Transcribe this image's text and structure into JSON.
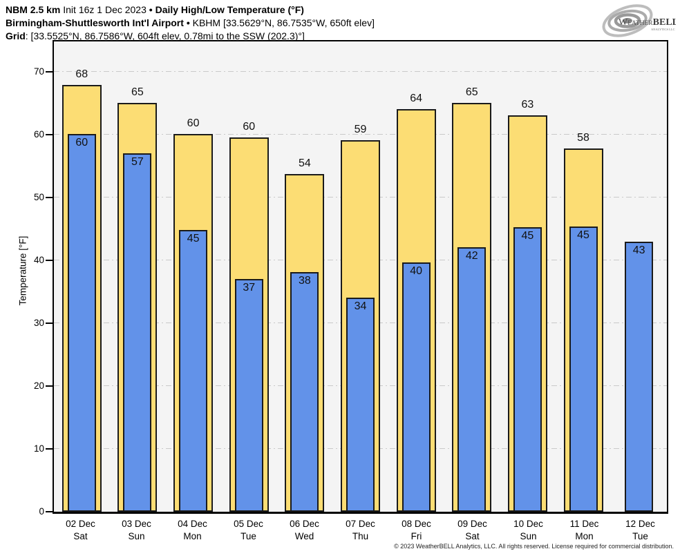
{
  "header": {
    "line1": {
      "model": "NBM 2.5 km",
      "init": "Init 16z 1 Dec 2023",
      "sep": "•",
      "title": "Daily High/Low Temperature (°F)"
    },
    "line2": {
      "station_name": "Birmingham-Shuttlesworth Int'l Airport",
      "sep": "•",
      "station_info": "KBHM [33.5629°N, 86.7535°W, 650ft elev]"
    },
    "line3": {
      "label": "Grid",
      "value": ": [33.5525°N, 86.7586°W, 604ft elev, 0.78mi to the SSW (202.3)°]"
    }
  },
  "logo": {
    "w": "W",
    "eather": "EATHER",
    "bell": "BELL",
    "sub": "ANALYTICS LLC"
  },
  "footer": {
    "copyright": "© 2023 WeatherBELL Analytics, LLC. All rights reserved. License required for commercial distribution."
  },
  "chart_data": {
    "type": "bar",
    "title": "Daily High/Low Temperature (°F)",
    "xlabel": "",
    "ylabel": "Temperature [°F]",
    "ylim": [
      0,
      74.8
    ],
    "yticks": [
      0,
      10,
      20,
      30,
      40,
      50,
      60,
      70
    ],
    "grid": true,
    "legend": false,
    "panel_color": "#f4f4f4",
    "gridline_color": "#c9c9c9",
    "categories": [
      {
        "date": "02 Dec",
        "day": "Sat"
      },
      {
        "date": "03 Dec",
        "day": "Sun"
      },
      {
        "date": "04 Dec",
        "day": "Mon"
      },
      {
        "date": "05 Dec",
        "day": "Tue"
      },
      {
        "date": "06 Dec",
        "day": "Wed"
      },
      {
        "date": "07 Dec",
        "day": "Thu"
      },
      {
        "date": "08 Dec",
        "day": "Fri"
      },
      {
        "date": "09 Dec",
        "day": "Sat"
      },
      {
        "date": "10 Dec",
        "day": "Sun"
      },
      {
        "date": "11 Dec",
        "day": "Mon"
      },
      {
        "date": "12 Dec",
        "day": "Tue"
      }
    ],
    "series": [
      {
        "name": "High",
        "color": "#FCDD74",
        "labels": [
          68,
          65,
          60,
          60,
          54,
          59,
          64,
          65,
          63,
          58,
          null
        ],
        "values": [
          67.9,
          65.0,
          60.05,
          59.55,
          53.75,
          59.1,
          64.05,
          65.0,
          63.0,
          57.8,
          null
        ]
      },
      {
        "name": "Low",
        "color": "#6292E9",
        "labels": [
          60,
          57,
          45,
          37,
          38,
          34,
          40,
          42,
          45,
          45,
          43
        ],
        "values": [
          60.1,
          57.0,
          44.8,
          37.0,
          38.1,
          34.0,
          39.6,
          42.1,
          45.3,
          45.4,
          43.0
        ]
      }
    ]
  }
}
